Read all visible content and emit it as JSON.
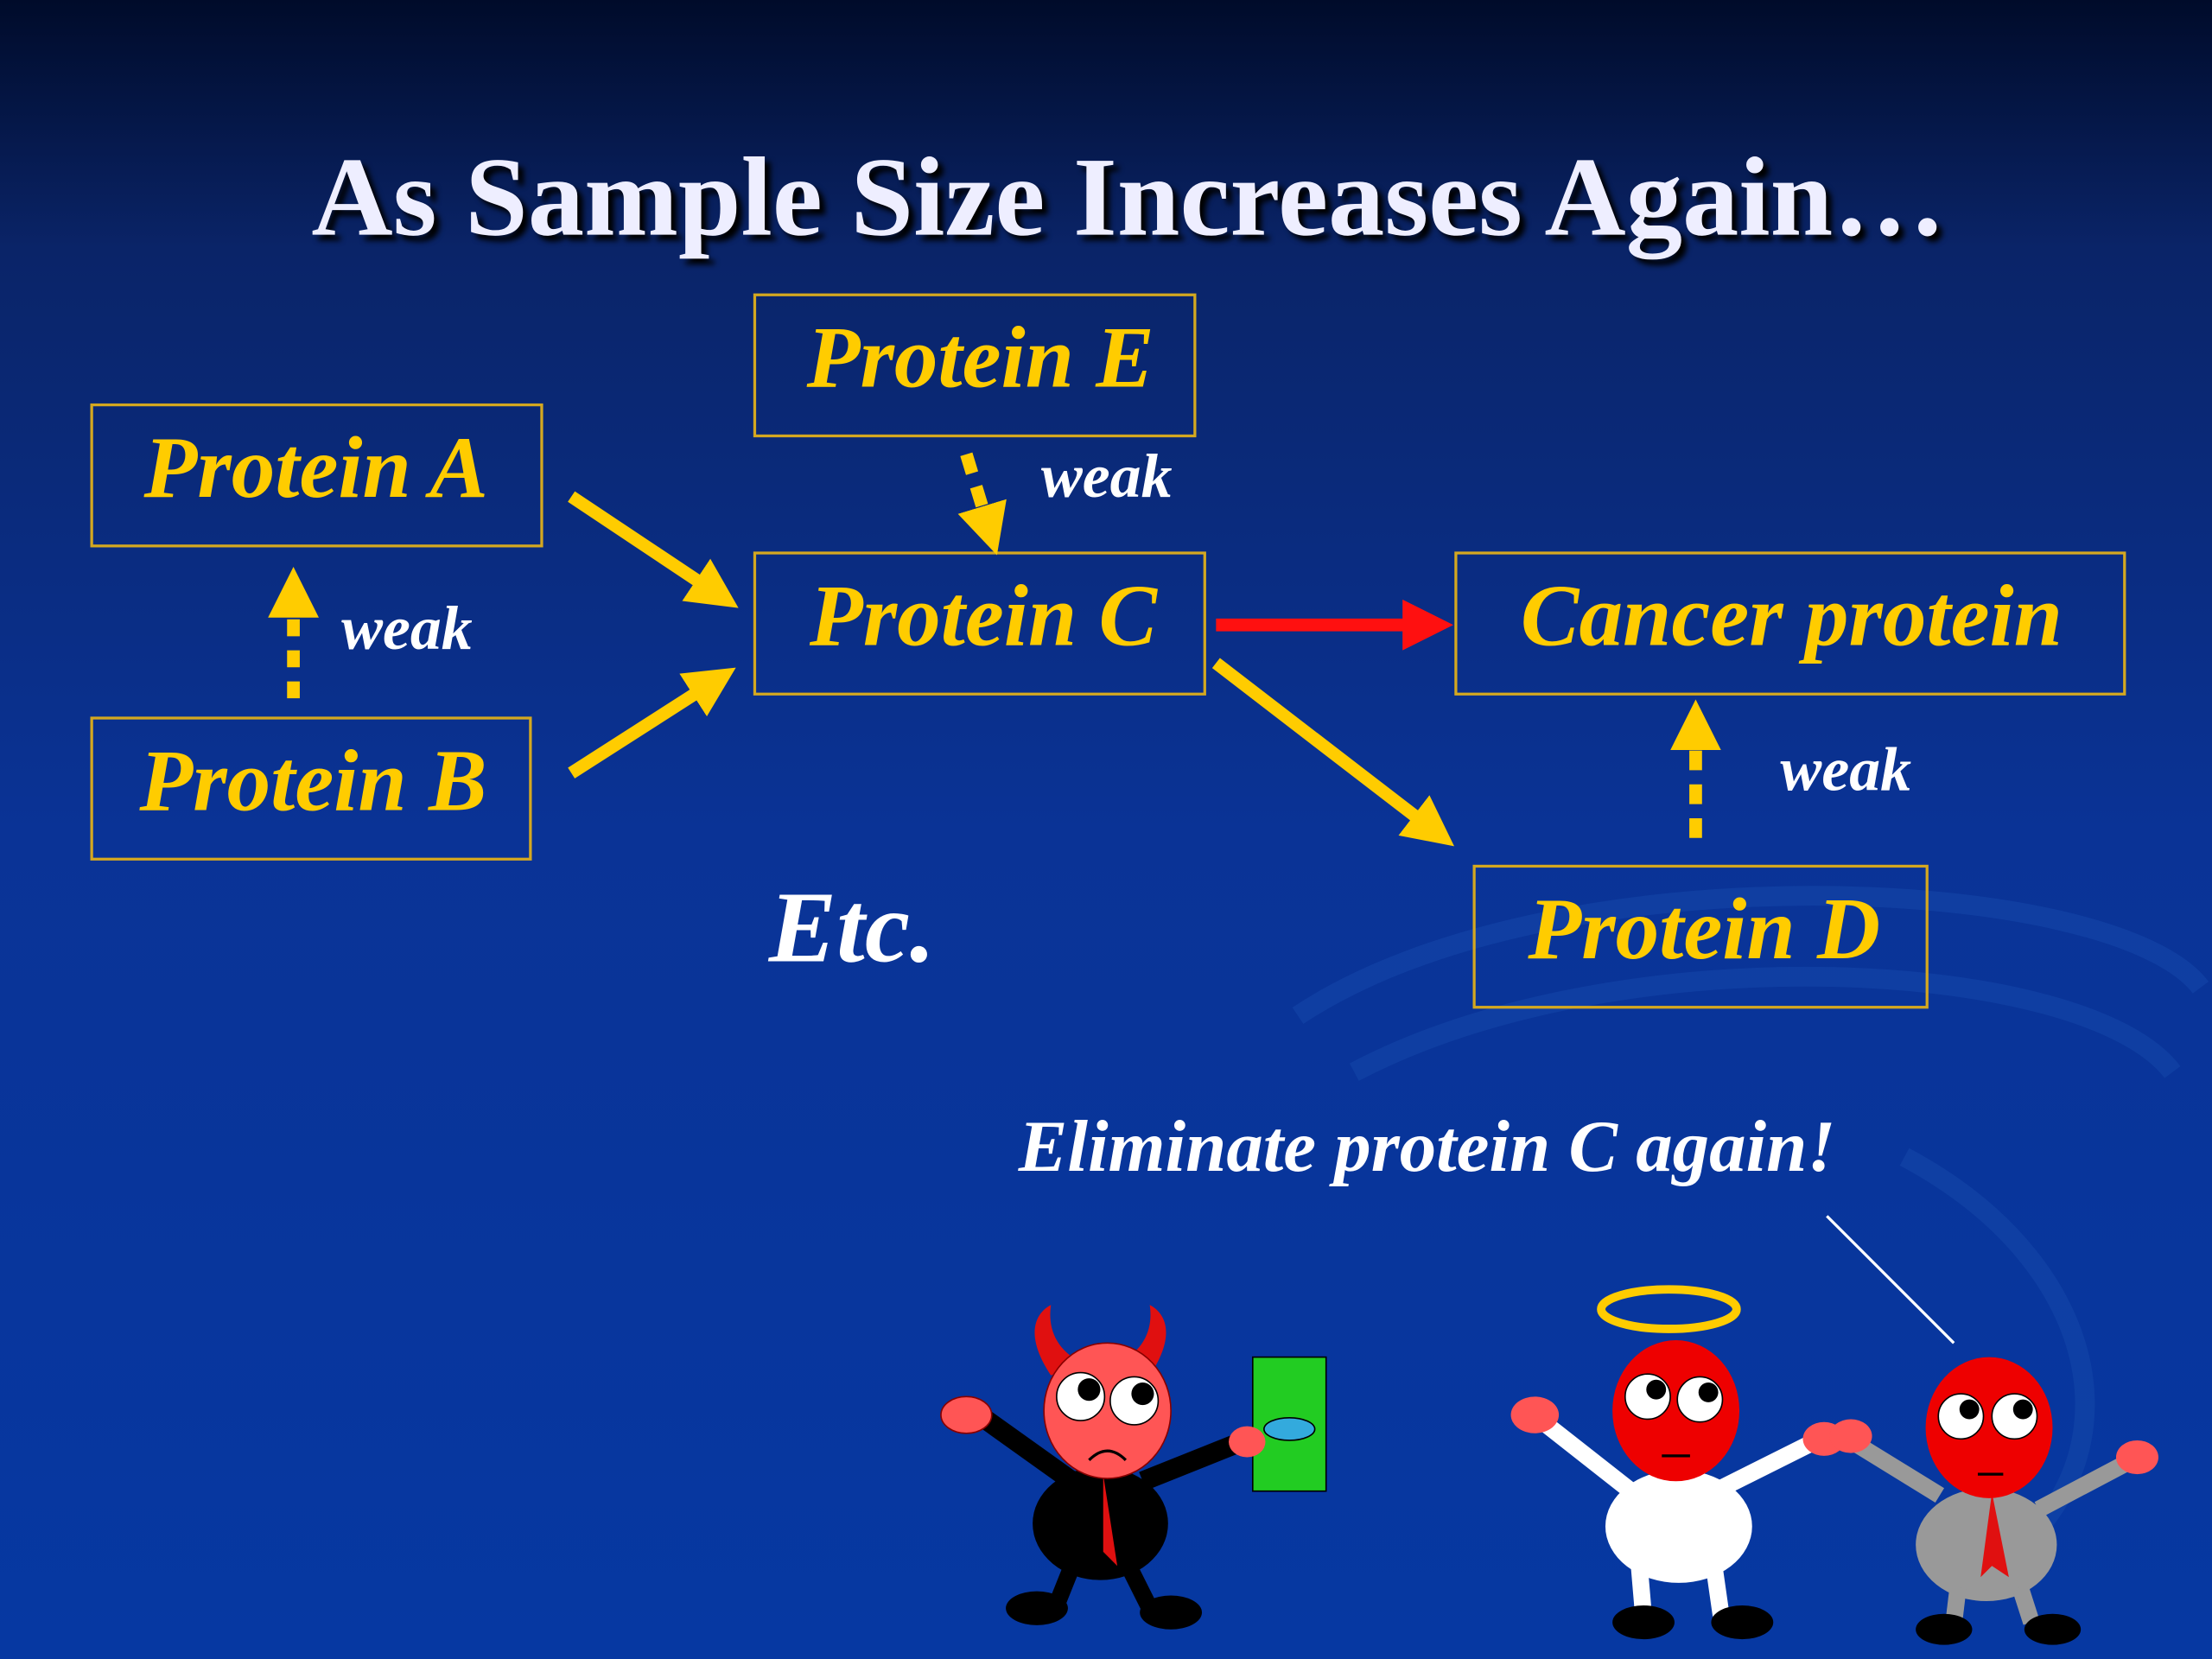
{
  "title": "As Sample Size Increases Again…",
  "nodes": [
    {
      "label": "Protein E"
    },
    {
      "label": "Protein A"
    },
    {
      "label": "Protein C"
    },
    {
      "label": "Cancer protein"
    },
    {
      "label": "Protein B"
    },
    {
      "label": "Protein D"
    }
  ],
  "edge_labels": [
    "weak",
    "weak",
    "weak"
  ],
  "note": "Etc.",
  "caption": "Eliminate protein C again!"
}
